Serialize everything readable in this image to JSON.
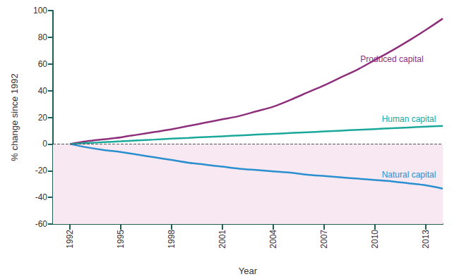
{
  "chart_data": {
    "type": "line",
    "x": [
      1992,
      1993,
      1994,
      1995,
      1996,
      1997,
      1998,
      1999,
      2000,
      2001,
      2002,
      2003,
      2004,
      2005,
      2006,
      2007,
      2008,
      2009,
      2010,
      2011,
      2012,
      2013,
      2014
    ],
    "series": [
      {
        "name": "Produced capital",
        "color": "#8e2f7c",
        "values": [
          0,
          2,
          3.5,
          5,
          7,
          9,
          11,
          13.5,
          16,
          18.5,
          21,
          24.5,
          28,
          33,
          38.5,
          44,
          50,
          56,
          63,
          70,
          77.5,
          85.5,
          94
        ]
      },
      {
        "name": "Human capital",
        "color": "#1aa89b",
        "values": [
          0,
          0.7,
          1.4,
          2,
          2.7,
          3.3,
          4,
          4.6,
          5.2,
          5.8,
          6.4,
          7,
          7.6,
          8.2,
          8.8,
          9.4,
          10,
          10.6,
          11.2,
          11.8,
          12.4,
          13,
          13.5
        ]
      },
      {
        "name": "Natural capital",
        "color": "#2a8fce",
        "values": [
          0,
          -2.5,
          -4.5,
          -6,
          -8,
          -10,
          -12,
          -14,
          -15.5,
          -17,
          -18.5,
          -19.5,
          -20.5,
          -21.5,
          -23,
          -24,
          -25,
          -26,
          -27,
          -28,
          -29.5,
          -31,
          -33.5
        ]
      }
    ],
    "xlim": [
      1991,
      2014
    ],
    "xticks": [
      1992,
      1995,
      1998,
      2001,
      2004,
      2007,
      2010,
      2013
    ],
    "ylim": [
      -60,
      100
    ],
    "yticks": [
      -60,
      -40,
      -20,
      0,
      20,
      40,
      60,
      80,
      100
    ],
    "x_label": "Year",
    "y_label": "% change since 1992",
    "grid": false
  }
}
